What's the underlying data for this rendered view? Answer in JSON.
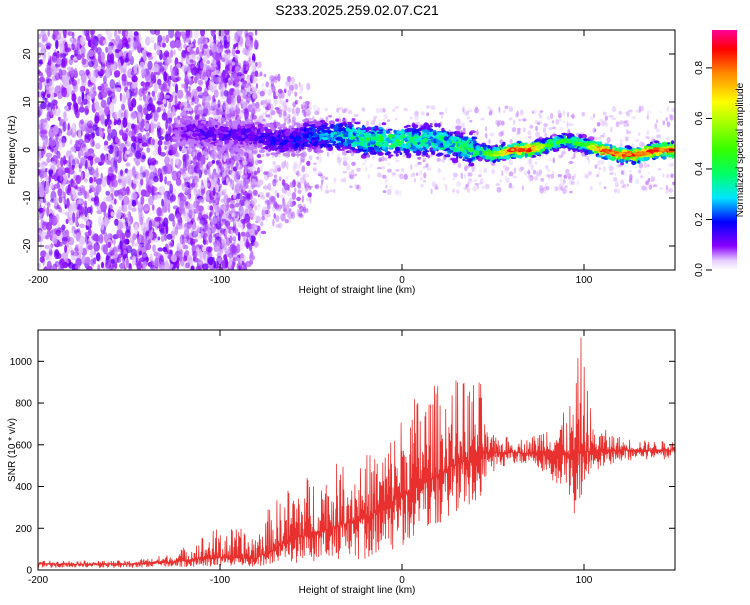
{
  "title": "S233.2025.259.02.07.C21",
  "chart_data": [
    {
      "type": "heatmap",
      "xlabel": "Height of straight line (km)",
      "ylabel": "Frequency (Hz)",
      "xlim": [
        -200,
        150
      ],
      "ylim": [
        -25,
        25
      ],
      "xticks": [
        -200,
        -100,
        0,
        100
      ],
      "yticks": [
        -20,
        -10,
        0,
        10,
        20
      ],
      "colorbar": {
        "label": "Normalized spectral amplitude",
        "range": [
          0.0,
          0.95
        ],
        "ticks": [
          0.0,
          0.2,
          0.4,
          0.6,
          0.8
        ],
        "tick_labels": [
          "0.0",
          "0.2",
          "0.4",
          "0.6",
          "0.8"
        ]
      },
      "ridge": {
        "x": [
          -125,
          -110,
          -100,
          -90,
          -80,
          -70,
          -60,
          -50,
          -40,
          -30,
          -20,
          -10,
          0,
          10,
          20,
          30,
          40,
          50,
          60,
          70,
          80,
          90,
          100,
          110,
          120,
          130,
          140,
          150
        ],
        "freq": [
          4,
          4,
          3,
          3,
          3,
          2,
          2,
          3,
          3,
          3,
          2,
          2,
          2,
          2,
          2,
          1,
          0,
          -1,
          0,
          0,
          1,
          2,
          1,
          0,
          -1,
          -1,
          0,
          0
        ],
        "peak_amplitude": [
          0.1,
          0.15,
          0.15,
          0.15,
          0.15,
          0.2,
          0.2,
          0.25,
          0.3,
          0.4,
          0.45,
          0.45,
          0.45,
          0.4,
          0.4,
          0.45,
          0.45,
          0.55,
          0.85,
          0.85,
          0.5,
          0.45,
          0.5,
          0.85,
          0.85,
          0.85,
          0.85,
          0.85
        ]
      }
    },
    {
      "type": "line",
      "color": "#e8302e",
      "xlabel": "Height of straight line (km)",
      "ylabel": "SNR (10 * v/v)",
      "xlim": [
        -200,
        150
      ],
      "ylim": [
        0,
        1150
      ],
      "xticks": [
        -200,
        -100,
        0,
        100
      ],
      "yticks": [
        0,
        200,
        400,
        600,
        800,
        1000
      ],
      "envelope": {
        "x": [
          -200,
          -150,
          -125,
          -110,
          -100,
          -80,
          -75,
          -60,
          -40,
          -20,
          -10,
          0,
          10,
          20,
          30,
          40,
          44,
          47,
          60,
          70,
          80,
          90,
          95,
          98,
          105,
          120,
          135,
          150
        ],
        "low": [
          10,
          10,
          15,
          15,
          20,
          15,
          20,
          30,
          40,
          50,
          80,
          110,
          150,
          200,
          250,
          300,
          330,
          430,
          510,
          500,
          450,
          340,
          260,
          300,
          470,
          520,
          530,
          530
        ],
        "mid": [
          30,
          28,
          40,
          55,
          60,
          55,
          80,
          150,
          200,
          250,
          300,
          360,
          410,
          460,
          510,
          530,
          560,
          560,
          565,
          560,
          570,
          560,
          540,
          570,
          570,
          575,
          575,
          575
        ],
        "high": [
          45,
          45,
          80,
          170,
          210,
          190,
          280,
          430,
          500,
          560,
          600,
          760,
          880,
          900,
          920,
          930,
          900,
          650,
          640,
          630,
          720,
          760,
          870,
          1150,
          700,
          640,
          620,
          620
        ]
      }
    }
  ]
}
